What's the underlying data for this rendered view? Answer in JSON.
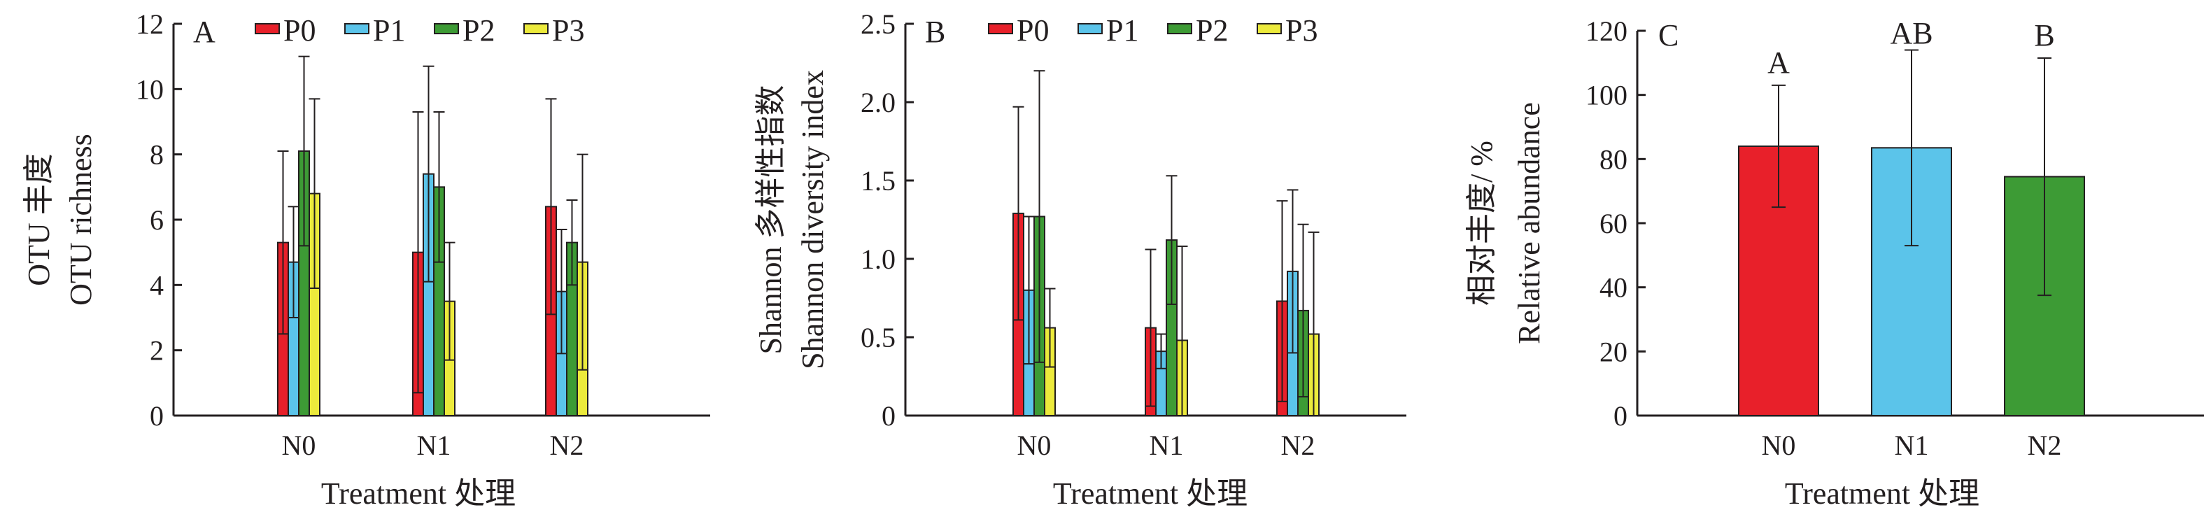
{
  "colors": {
    "P0": "#e8202a",
    "P1": "#5bc4ea",
    "P2": "#3d9b35",
    "P3": "#ecea3c",
    "axis": "#231f20"
  },
  "chart_data": [
    {
      "type": "bar",
      "panel_label": "A",
      "ylabel_cn": "OTU 丰度",
      "ylabel_en": "OTU richness",
      "xlabel": "Treatment 处理",
      "categories": [
        "N0",
        "N1",
        "N2"
      ],
      "ylim": [
        0,
        12
      ],
      "yticks": [
        0,
        2,
        4,
        6,
        8,
        10,
        12
      ],
      "ytick_labels": [
        "0",
        "2",
        "4",
        "6",
        "8",
        "10",
        "12"
      ],
      "legend": [
        "P0",
        "P1",
        "P2",
        "P3"
      ],
      "series": [
        {
          "name": "P0",
          "values": [
            5.3,
            5.0,
            6.4
          ],
          "errors": [
            2.8,
            4.3,
            3.3
          ]
        },
        {
          "name": "P1",
          "values": [
            4.7,
            7.4,
            3.8
          ],
          "errors": [
            1.7,
            3.3,
            1.9
          ]
        },
        {
          "name": "P2",
          "values": [
            8.1,
            7.0,
            5.3
          ],
          "errors": [
            2.9,
            2.3,
            1.3
          ]
        },
        {
          "name": "P3",
          "values": [
            6.8,
            3.5,
            4.7
          ],
          "errors": [
            2.9,
            1.8,
            3.3
          ]
        }
      ]
    },
    {
      "type": "bar",
      "panel_label": "B",
      "ylabel_cn": "Shannon 多样性指数",
      "ylabel_en": "Shannon diversity index",
      "xlabel": "Treatment 处理",
      "categories": [
        "N0",
        "N1",
        "N2"
      ],
      "ylim": [
        0,
        2.5
      ],
      "yticks": [
        0,
        0.5,
        1.0,
        1.5,
        2.0,
        2.5
      ],
      "ytick_labels": [
        "0",
        "0.5",
        "1.0",
        "1.5",
        "2.0",
        "2.5"
      ],
      "legend": [
        "P0",
        "P1",
        "P2",
        "P3"
      ],
      "series": [
        {
          "name": "P0",
          "values": [
            1.29,
            0.56,
            0.73
          ],
          "errors": [
            0.68,
            0.5,
            0.64
          ]
        },
        {
          "name": "P1",
          "values": [
            0.8,
            0.41,
            0.92
          ],
          "errors": [
            0.47,
            0.11,
            0.52
          ]
        },
        {
          "name": "P2",
          "values": [
            1.27,
            1.12,
            0.67
          ],
          "errors": [
            0.93,
            0.41,
            0.55
          ]
        },
        {
          "name": "P3",
          "values": [
            0.56,
            0.48,
            0.52
          ],
          "errors": [
            0.25,
            0.6,
            0.65
          ]
        }
      ]
    },
    {
      "type": "bar",
      "panel_label": "C",
      "ylabel_cn": "相对丰度/ %",
      "ylabel_en": "Relative abundance",
      "xlabel": "Treatment 处理",
      "categories": [
        "N0",
        "N1",
        "N2"
      ],
      "ylim": [
        0,
        120
      ],
      "yticks": [
        0,
        20,
        40,
        60,
        80,
        100,
        120
      ],
      "ytick_labels": [
        "0",
        "20",
        "40",
        "60",
        "80",
        "100",
        "120"
      ],
      "values": [
        84,
        83.5,
        74.5
      ],
      "errors": [
        19,
        30.5,
        37
      ],
      "bar_colors": [
        "#e8202a",
        "#5bc4ea",
        "#3d9b35"
      ],
      "significance_letters": [
        "A",
        "AB",
        "B"
      ]
    }
  ]
}
